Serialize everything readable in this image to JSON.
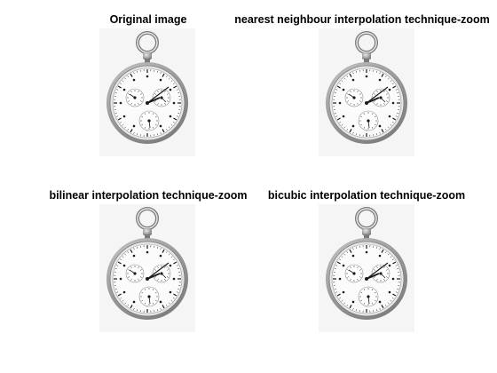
{
  "panels": [
    {
      "title": "Original image"
    },
    {
      "title": "nearest neighbour interpolation technique-zoom"
    },
    {
      "title": "bilinear interpolation technique-zoom"
    },
    {
      "title": "bicubic interpolation technique-zoom"
    }
  ],
  "colors": {
    "background": "#ffffff",
    "panel_bg": "#f5f5f5",
    "silver_dark": "#7a7a7a",
    "silver_light": "#e6e6e6",
    "dial_face": "#fbfbfb",
    "hands": "#1a1a1a"
  },
  "icons": {
    "watch": "pocket-watch-image"
  }
}
